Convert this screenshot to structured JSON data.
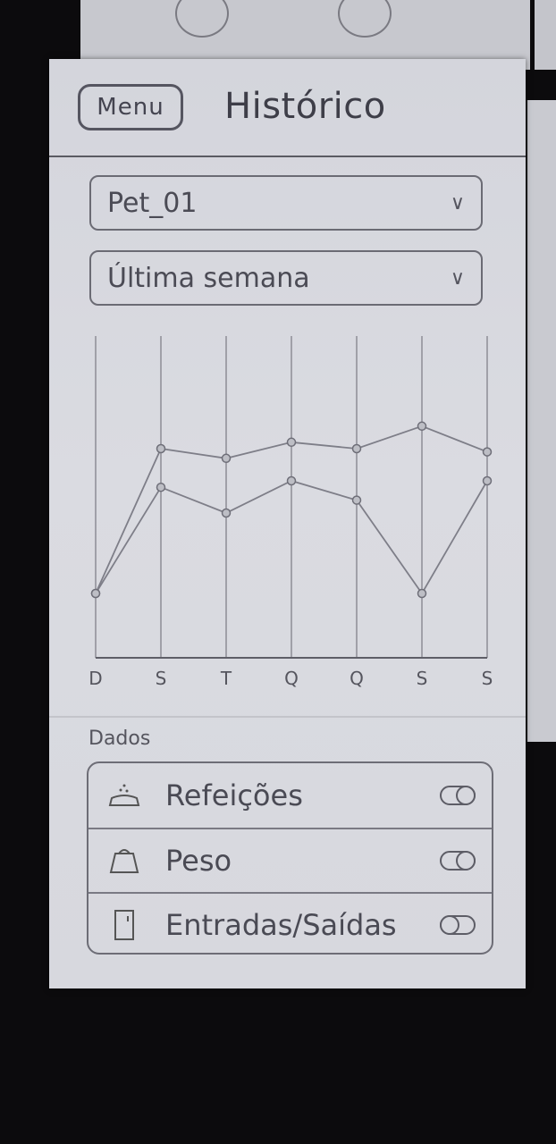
{
  "header": {
    "menu_label": "Menu",
    "title": "Histórico"
  },
  "filters": {
    "pet_select": {
      "value": "Pet_01"
    },
    "period_select": {
      "value": "Última semana"
    }
  },
  "chart_data": {
    "type": "line",
    "categories": [
      "D",
      "S",
      "T",
      "Q",
      "Q",
      "S",
      "S"
    ],
    "series": [
      {
        "values": [
          2,
          6.5,
          6.2,
          6.7,
          6.5,
          7.2,
          6.4
        ]
      },
      {
        "values": [
          2,
          5.3,
          4.5,
          5.5,
          4.9,
          2,
          5.5
        ]
      }
    ],
    "ylim": [
      0,
      10
    ],
    "grid": "vertical"
  },
  "data_section": {
    "label": "Dados",
    "items": [
      {
        "label": "Refeições",
        "icon": "food-bowl-icon",
        "toggle": "on"
      },
      {
        "label": "Peso",
        "icon": "weight-icon",
        "toggle": "on"
      },
      {
        "label": "Entradas/Saídas",
        "icon": "door-icon",
        "toggle": "off"
      }
    ]
  }
}
